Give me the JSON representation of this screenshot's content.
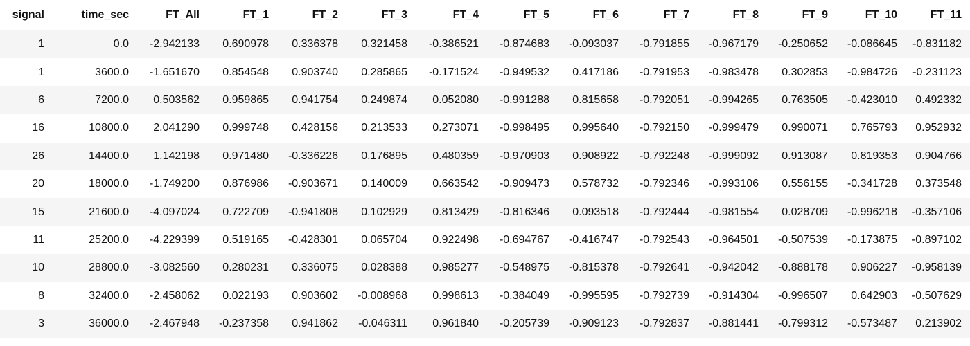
{
  "table": {
    "columns": [
      "signal",
      "time_sec",
      "FT_All",
      "FT_1",
      "FT_2",
      "FT_3",
      "FT_4",
      "FT_5",
      "FT_6",
      "FT_7",
      "FT_8",
      "FT_9",
      "FT_10",
      "FT_11"
    ],
    "rows": [
      [
        "1",
        "0.0",
        "-2.942133",
        "0.690978",
        "0.336378",
        "0.321458",
        "-0.386521",
        "-0.874683",
        "-0.093037",
        "-0.791855",
        "-0.967179",
        "-0.250652",
        "-0.086645",
        "-0.831182"
      ],
      [
        "1",
        "3600.0",
        "-1.651670",
        "0.854548",
        "0.903740",
        "0.285865",
        "-0.171524",
        "-0.949532",
        "0.417186",
        "-0.791953",
        "-0.983478",
        "0.302853",
        "-0.984726",
        "-0.231123"
      ],
      [
        "6",
        "7200.0",
        "0.503562",
        "0.959865",
        "0.941754",
        "0.249874",
        "0.052080",
        "-0.991288",
        "0.815658",
        "-0.792051",
        "-0.994265",
        "0.763505",
        "-0.423010",
        "0.492332"
      ],
      [
        "16",
        "10800.0",
        "2.041290",
        "0.999748",
        "0.428156",
        "0.213533",
        "0.273071",
        "-0.998495",
        "0.995640",
        "-0.792150",
        "-0.999479",
        "0.990071",
        "0.765793",
        "0.952932"
      ],
      [
        "26",
        "14400.0",
        "1.142198",
        "0.971480",
        "-0.336226",
        "0.176895",
        "0.480359",
        "-0.970903",
        "0.908922",
        "-0.792248",
        "-0.999092",
        "0.913087",
        "0.819353",
        "0.904766"
      ],
      [
        "20",
        "18000.0",
        "-1.749200",
        "0.876986",
        "-0.903671",
        "0.140009",
        "0.663542",
        "-0.909473",
        "0.578732",
        "-0.792346",
        "-0.993106",
        "0.556155",
        "-0.341728",
        "0.373548"
      ],
      [
        "15",
        "21600.0",
        "-4.097024",
        "0.722709",
        "-0.941808",
        "0.102929",
        "0.813429",
        "-0.816346",
        "0.093518",
        "-0.792444",
        "-0.981554",
        "0.028709",
        "-0.996218",
        "-0.357106"
      ],
      [
        "11",
        "25200.0",
        "-4.229399",
        "0.519165",
        "-0.428301",
        "0.065704",
        "0.922498",
        "-0.694767",
        "-0.416747",
        "-0.792543",
        "-0.964501",
        "-0.507539",
        "-0.173875",
        "-0.897102"
      ],
      [
        "10",
        "28800.0",
        "-3.082560",
        "0.280231",
        "0.336075",
        "0.028388",
        "0.985277",
        "-0.548975",
        "-0.815378",
        "-0.792641",
        "-0.942042",
        "-0.888178",
        "0.906227",
        "-0.958139"
      ],
      [
        "8",
        "32400.0",
        "-2.458062",
        "0.022193",
        "0.903602",
        "-0.008968",
        "0.998613",
        "-0.384049",
        "-0.995595",
        "-0.792739",
        "-0.914304",
        "-0.996507",
        "0.642903",
        "-0.507629"
      ],
      [
        "3",
        "36000.0",
        "-2.467948",
        "-0.237358",
        "0.941862",
        "-0.046311",
        "0.961840",
        "-0.205739",
        "-0.909123",
        "-0.792837",
        "-0.881441",
        "-0.799312",
        "-0.573487",
        "0.213902"
      ]
    ]
  }
}
